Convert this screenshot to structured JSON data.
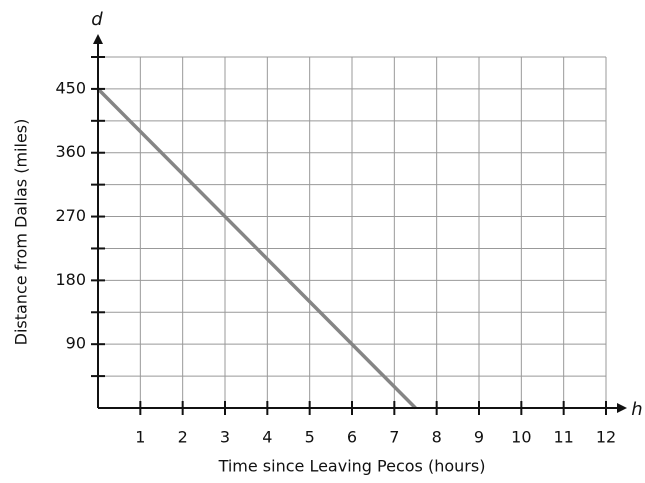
{
  "chart_data": {
    "type": "line",
    "x_label": "Time since Leaving Pecos (hours)",
    "y_label": "Distance from Dallas (miles)",
    "x_axis_letter": "h",
    "y_axis_letter": "d",
    "x": [
      0,
      7.5
    ],
    "series": [
      {
        "color": "#858585",
        "values": [
          450,
          0
        ]
      }
    ],
    "xlim": [
      0,
      12
    ],
    "xticks": [
      1,
      2,
      3,
      4,
      5,
      6,
      7,
      8,
      9,
      10,
      11,
      12
    ],
    "ylim": [
      0,
      495
    ],
    "yticks": [
      90,
      180,
      270,
      360,
      450
    ],
    "yminorticks": [
      45,
      135,
      225,
      315,
      405,
      495
    ],
    "grid": true
  }
}
